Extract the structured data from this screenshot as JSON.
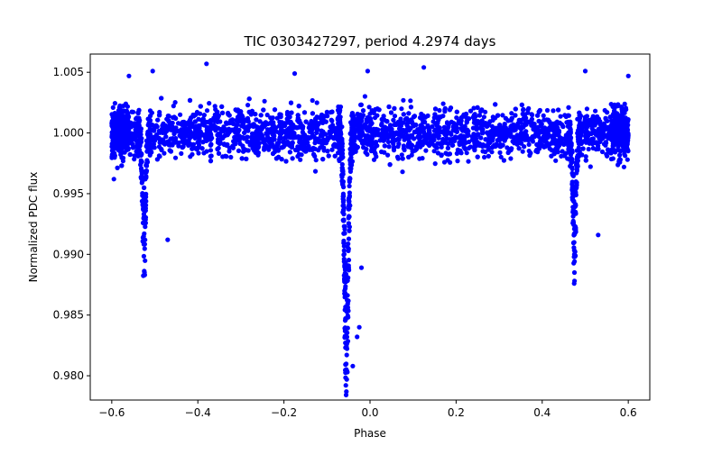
{
  "colors": {
    "points": "#0000ff",
    "axes": "#000000",
    "background": "#ffffff"
  },
  "chart_data": {
    "type": "scatter",
    "title": "TIC 0303427297, period 4.2974 days",
    "xlabel": "Phase",
    "ylabel": "Normalized PDC flux",
    "xlim": [
      -0.65,
      0.65
    ],
    "ylim": [
      0.978,
      1.0065
    ],
    "xticks": [
      -0.6,
      -0.4,
      -0.2,
      0.0,
      0.2,
      0.4,
      0.6
    ],
    "xtick_labels": [
      "−0.6",
      "−0.4",
      "−0.2",
      "0.0",
      "0.2",
      "0.4",
      "0.6"
    ],
    "yticks": [
      0.98,
      0.985,
      0.99,
      0.995,
      1.0,
      1.005
    ],
    "ytick_labels": [
      "0.980",
      "0.985",
      "0.990",
      "0.995",
      "1.000",
      "1.005"
    ],
    "grid": false,
    "legend": "none",
    "series": [
      {
        "marker": "filled-circle",
        "color": "#0000ff",
        "x_range": [
          -0.6,
          0.6
        ],
        "baseline_flux": 1.0,
        "baseline_scatter": 0.0018,
        "eclipses": [
          {
            "kind": "primary",
            "phase": -0.055,
            "min_flux": 0.9787,
            "half_width": 0.008
          },
          {
            "kind": "secondary",
            "phase": -0.525,
            "min_flux": 0.9885,
            "half_width": 0.006
          },
          {
            "kind": "secondary",
            "phase": 0.475,
            "min_flux": 0.9885,
            "half_width": 0.006
          }
        ],
        "extrema": [
          [
            -0.38,
            1.0057
          ],
          [
            0.125,
            1.0054
          ],
          [
            -0.175,
            1.0049
          ],
          [
            -0.505,
            1.0051
          ],
          [
            0.5,
            1.0051
          ],
          [
            0.6,
            1.0047
          ],
          [
            -0.0055,
            1.0051
          ],
          [
            -0.56,
            1.0047
          ],
          [
            -0.055,
            0.9787
          ],
          [
            -0.054,
            0.9797
          ],
          [
            -0.056,
            0.9804
          ],
          [
            -0.04,
            0.9808
          ],
          [
            -0.03,
            0.9832
          ],
          [
            -0.025,
            0.984
          ],
          [
            -0.02,
            0.9889
          ],
          [
            -0.524,
            0.9885
          ],
          [
            0.475,
            0.9885
          ],
          [
            -0.47,
            0.9912
          ],
          [
            0.53,
            0.9916
          ],
          [
            -0.595,
            0.9962
          ],
          [
            0.59,
            0.9972
          ]
        ]
      }
    ]
  }
}
